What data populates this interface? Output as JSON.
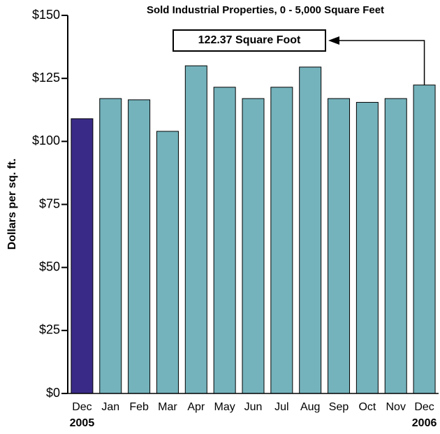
{
  "chart_data": {
    "type": "bar",
    "title": "Sold Industrial Properties, 0 - 5,000 Square Feet",
    "ylabel": "Dollars per sq. ft.",
    "annotation": "122.37 Square Foot",
    "categories": [
      "Dec",
      "Jan",
      "Feb",
      "Mar",
      "Apr",
      "May",
      "Jun",
      "Jul",
      "Aug",
      "Sep",
      "Oct",
      "Nov",
      "Dec"
    ],
    "category_years": [
      "2005",
      null,
      null,
      null,
      null,
      null,
      null,
      null,
      null,
      null,
      null,
      null,
      "2006"
    ],
    "values": [
      109,
      117,
      116.5,
      104,
      130,
      121.5,
      117,
      121.5,
      129.5,
      117,
      115.5,
      117,
      122.37
    ],
    "colors": [
      "#3a2a87",
      "#74b3bc",
      "#74b3bc",
      "#74b3bc",
      "#74b3bc",
      "#74b3bc",
      "#74b3bc",
      "#74b3bc",
      "#74b3bc",
      "#74b3bc",
      "#74b3bc",
      "#74b3bc",
      "#74b3bc"
    ],
    "ylim": [
      0,
      150
    ],
    "yticks": [
      {
        "value": 0,
        "label": "$0"
      },
      {
        "value": 25,
        "label": "$25"
      },
      {
        "value": 50,
        "label": "$50"
      },
      {
        "value": 75,
        "label": "$75"
      },
      {
        "value": 100,
        "label": "$100"
      },
      {
        "value": 125,
        "label": "$125"
      },
      {
        "value": 150,
        "label": "$150"
      }
    ],
    "grid": false
  }
}
